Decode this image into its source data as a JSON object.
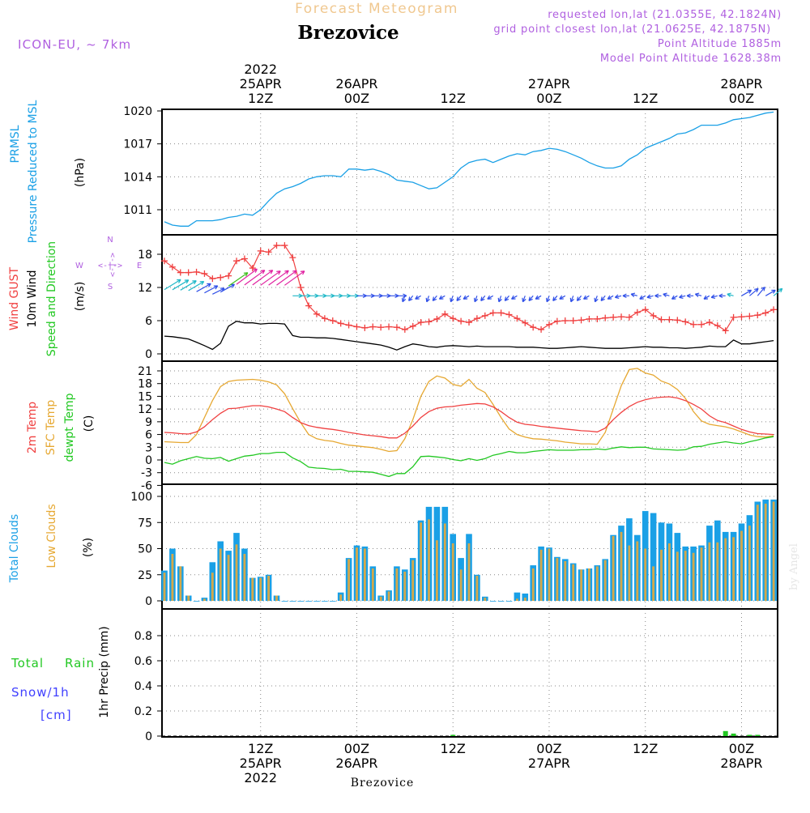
{
  "colors": {
    "pressure": "#1aa0e6",
    "gust": "#f04040",
    "wind": "#000000",
    "temp2m": "#f04040",
    "sfc": "#e6a832",
    "dewpt": "#22c822",
    "total_cloud": "#1aa0e6",
    "low_cloud": "#d4a84a",
    "rain": "#22c822",
    "snow": "#4040ff",
    "meta": "#b060e0",
    "title_faded": "#f0c890"
  },
  "header": {
    "faded_title": "Forecast Meteogram",
    "location": "Brezovice",
    "model": "ICON-EU, ~ 7km",
    "requested": "requested lon,lat (21.0355E, 42.1824N)",
    "gridpoint": "grid point closest lon,lat (21.0625E, 42.1875N)",
    "point_alt": "Point Altitude 1885m",
    "model_alt": "Model Point Altitude 1628.38m",
    "footer_location": "Brezovice",
    "watermark": "by Angel"
  },
  "time_axis": {
    "top": [
      {
        "h": 12,
        "lines": [
          "2022",
          "25APR",
          "12Z"
        ]
      },
      {
        "h": 24,
        "lines": [
          "26APR",
          "00Z"
        ]
      },
      {
        "h": 36,
        "lines": [
          "12Z"
        ]
      },
      {
        "h": 48,
        "lines": [
          "27APR",
          "00Z"
        ]
      },
      {
        "h": 60,
        "lines": [
          "12Z"
        ]
      },
      {
        "h": 72,
        "lines": [
          "28APR",
          "00Z"
        ]
      }
    ],
    "bottom": [
      {
        "h": 12,
        "lines": [
          "12Z",
          "25APR",
          "2022"
        ]
      },
      {
        "h": 24,
        "lines": [
          "00Z",
          "26APR"
        ]
      },
      {
        "h": 36,
        "lines": [
          "12Z"
        ]
      },
      {
        "h": 48,
        "lines": [
          "00Z",
          "27APR"
        ]
      },
      {
        "h": 60,
        "lines": [
          "12Z"
        ]
      },
      {
        "h": 72,
        "lines": [
          "00Z",
          "28APR"
        ]
      }
    ]
  },
  "panel_labels": {
    "pressure": [
      "PRMSL",
      "Pressure Reduced to MSL"
    ],
    "pressure_unit": "(hPa)",
    "wind": [
      "Wind GUST",
      "10m Wind",
      "Speed and Direction"
    ],
    "wind_unit": "(m/s)",
    "compass": {
      "n": "N",
      "s": "S",
      "w": "W",
      "e": "E",
      "arrows": "<-|->"
    },
    "temp": [
      "2m Temp",
      "SFC Temp",
      "dewpt Temp"
    ],
    "temp_unit": "(C)",
    "cloud": [
      "Total Clouds",
      "Low Clouds"
    ],
    "cloud_unit": "(%)",
    "precip": [
      "Total",
      "Rain",
      "Snow/1h",
      "[cm]"
    ],
    "precip_unit": "1hr Precip (mm)"
  },
  "chart_data": [
    {
      "type": "line",
      "title": "PRMSL Pressure Reduced to MSL",
      "ylabel": "hPa",
      "ylim": [
        1008.5,
        1020
      ],
      "yticks": [
        "1011",
        "1014",
        "1017",
        "1020"
      ],
      "x_hours": [
        0,
        1,
        2,
        3,
        4,
        5,
        6,
        7,
        8,
        9,
        10,
        11,
        12,
        13,
        14,
        15,
        16,
        17,
        18,
        19,
        20,
        21,
        22,
        23,
        24,
        25,
        26,
        27,
        28,
        29,
        30,
        31,
        32,
        33,
        34,
        35,
        36,
        37,
        38,
        39,
        40,
        41,
        42,
        43,
        44,
        45,
        46,
        47,
        48,
        49,
        50,
        51,
        52,
        53,
        54,
        55,
        56,
        57,
        58,
        59,
        60,
        61,
        62,
        63,
        64,
        65,
        66,
        67,
        68,
        69,
        70,
        71,
        72,
        73,
        74,
        75,
        76
      ],
      "series": [
        {
          "name": "PRMSL",
          "values": [
            1009.9,
            1009.6,
            1009.5,
            1009.5,
            1010.0,
            1010.0,
            1010.0,
            1010.1,
            1010.3,
            1010.4,
            1010.6,
            1010.5,
            1011.0,
            1011.8,
            1012.5,
            1012.9,
            1013.1,
            1013.4,
            1013.8,
            1014.0,
            1014.1,
            1014.1,
            1014.0,
            1014.7,
            1014.7,
            1014.6,
            1014.7,
            1014.5,
            1014.2,
            1013.7,
            1013.6,
            1013.5,
            1013.2,
            1012.9,
            1013.0,
            1013.5,
            1014.0,
            1014.8,
            1015.3,
            1015.5,
            1015.6,
            1015.3,
            1015.6,
            1015.9,
            1016.1,
            1016.0,
            1016.3,
            1016.4,
            1016.6,
            1016.5,
            1016.3,
            1016.0,
            1015.7,
            1015.3,
            1015.0,
            1014.8,
            1014.8,
            1015.0,
            1015.6,
            1016.0,
            1016.6,
            1016.9,
            1017.2,
            1017.5,
            1017.9,
            1018.0,
            1018.3,
            1018.7,
            1018.7,
            1018.7,
            1018.9,
            1019.2,
            1019.3,
            1019.4,
            1019.6,
            1019.8,
            1019.9
          ]
        }
      ]
    },
    {
      "type": "line",
      "title": "Wind GUST / 10m Wind Speed and Direction",
      "ylabel": "m/s",
      "ylim": [
        -0.5,
        20.5
      ],
      "yticks": [
        "0",
        "6",
        "12",
        "18"
      ],
      "x_hours": [
        0,
        1,
        2,
        3,
        4,
        5,
        6,
        7,
        8,
        9,
        10,
        11,
        12,
        13,
        14,
        15,
        16,
        17,
        18,
        19,
        20,
        21,
        22,
        23,
        24,
        25,
        26,
        27,
        28,
        29,
        30,
        31,
        32,
        33,
        34,
        35,
        36,
        37,
        38,
        39,
        40,
        41,
        42,
        43,
        44,
        45,
        46,
        47,
        48,
        49,
        50,
        51,
        52,
        53,
        54,
        55,
        56,
        57,
        58,
        59,
        60,
        61,
        62,
        63,
        64,
        65,
        66,
        67,
        68,
        69,
        70,
        71,
        72,
        73,
        74,
        75,
        76
      ],
      "series": [
        {
          "name": "Wind GUST",
          "values": [
            16.8,
            15.7,
            14.7,
            14.7,
            14.8,
            14.5,
            13.6,
            13.8,
            14.1,
            16.8,
            17.2,
            15.5,
            18.6,
            18.4,
            19.6,
            19.6,
            17.4,
            12.0,
            8.7,
            7.2,
            6.4,
            6.0,
            5.5,
            5.2,
            4.9,
            4.7,
            4.9,
            4.8,
            4.9,
            4.8,
            4.4,
            5.0,
            5.7,
            5.8,
            6.3,
            7.2,
            6.4,
            5.9,
            5.7,
            6.4,
            6.9,
            7.4,
            7.4,
            7.1,
            6.4,
            5.6,
            4.8,
            4.4,
            5.3,
            5.9,
            6.0,
            6.0,
            6.1,
            6.3,
            6.3,
            6.5,
            6.6,
            6.7,
            6.6,
            7.5,
            8.0,
            6.9,
            6.2,
            6.2,
            6.1,
            5.8,
            5.3,
            5.3,
            5.7,
            5.1,
            4.2,
            6.6,
            6.7,
            6.8,
            7.0,
            7.4,
            8.0
          ]
        },
        {
          "name": "10m Wind",
          "values": [
            3.2,
            3.1,
            2.9,
            2.7,
            2.1,
            1.5,
            0.8,
            1.9,
            5.0,
            5.9,
            5.6,
            5.6,
            5.4,
            5.5,
            5.5,
            5.4,
            3.3,
            3.0,
            3.0,
            2.9,
            2.9,
            2.8,
            2.6,
            2.4,
            2.2,
            2.0,
            1.8,
            1.6,
            1.2,
            0.7,
            1.3,
            1.8,
            1.6,
            1.3,
            1.2,
            1.4,
            1.5,
            1.4,
            1.3,
            1.4,
            1.3,
            1.3,
            1.3,
            1.3,
            1.2,
            1.2,
            1.2,
            1.1,
            1.0,
            1.0,
            1.1,
            1.2,
            1.3,
            1.2,
            1.1,
            1.0,
            1.0,
            1.0,
            1.1,
            1.2,
            1.3,
            1.2,
            1.2,
            1.1,
            1.1,
            1.0,
            1.1,
            1.2,
            1.4,
            1.3,
            1.3,
            2.5,
            1.8,
            1.8,
            2.0,
            2.2,
            2.4
          ]
        }
      ]
    },
    {
      "type": "line",
      "title": "2m Temp / SFC Temp / dewpt Temp",
      "ylabel": "C",
      "ylim": [
        -6,
        22
      ],
      "yticks": [
        "-6",
        "-3",
        "0",
        "3",
        "6",
        "9",
        "12",
        "15",
        "18",
        "21"
      ],
      "x_hours": [
        0,
        1,
        2,
        3,
        4,
        5,
        6,
        7,
        8,
        9,
        10,
        11,
        12,
        13,
        14,
        15,
        16,
        17,
        18,
        19,
        20,
        21,
        22,
        23,
        24,
        25,
        26,
        27,
        28,
        29,
        30,
        31,
        32,
        33,
        34,
        35,
        36,
        37,
        38,
        39,
        40,
        41,
        42,
        43,
        44,
        45,
        46,
        47,
        48,
        49,
        50,
        51,
        52,
        53,
        54,
        55,
        56,
        57,
        58,
        59,
        60,
        61,
        62,
        63,
        64,
        65,
        66,
        67,
        68,
        69,
        70,
        71,
        72,
        73,
        74,
        75,
        76
      ],
      "series": [
        {
          "name": "2m Temp",
          "values": [
            6.5,
            6.4,
            6.2,
            6.1,
            6.6,
            7.8,
            9.5,
            11.0,
            12.1,
            12.2,
            12.5,
            12.8,
            12.8,
            12.5,
            12.0,
            11.4,
            10.0,
            8.8,
            8.1,
            7.7,
            7.4,
            7.2,
            6.9,
            6.5,
            6.2,
            5.9,
            5.7,
            5.5,
            5.2,
            5.2,
            6.3,
            8.0,
            10.0,
            11.4,
            12.2,
            12.5,
            12.6,
            12.9,
            13.1,
            13.3,
            13.2,
            12.5,
            11.4,
            10.0,
            8.9,
            8.4,
            8.2,
            7.9,
            7.7,
            7.5,
            7.3,
            7.1,
            6.9,
            6.8,
            6.6,
            7.5,
            9.5,
            11.2,
            12.6,
            13.6,
            14.2,
            14.6,
            14.8,
            14.9,
            14.6,
            14.0,
            13.1,
            12.0,
            10.4,
            9.3,
            8.8,
            8.0,
            7.2,
            6.6,
            6.2,
            6.1,
            6.0
          ]
        },
        {
          "name": "SFC Temp",
          "values": [
            4.3,
            4.2,
            4.1,
            4.1,
            6.0,
            10.0,
            14.0,
            17.3,
            18.5,
            18.8,
            18.9,
            19.0,
            18.8,
            18.4,
            17.7,
            15.6,
            12.1,
            8.8,
            6.0,
            5.0,
            4.6,
            4.4,
            3.9,
            3.5,
            3.3,
            3.1,
            2.9,
            2.5,
            2.0,
            2.2,
            5.0,
            9.5,
            15.0,
            18.5,
            19.8,
            19.3,
            17.8,
            17.4,
            19.0,
            16.9,
            15.9,
            13.1,
            10.0,
            7.3,
            6.0,
            5.4,
            5.0,
            4.9,
            4.7,
            4.5,
            4.2,
            4.0,
            3.8,
            3.8,
            3.7,
            6.5,
            12.0,
            17.5,
            21.3,
            21.6,
            20.5,
            20.0,
            18.6,
            17.9,
            16.6,
            14.5,
            11.4,
            9.2,
            8.4,
            8.1,
            7.8,
            7.3,
            6.6,
            5.9,
            5.5,
            5.4,
            5.7
          ]
        },
        {
          "name": "dewpt Temp",
          "values": [
            -0.6,
            -1.0,
            -0.2,
            0.3,
            0.8,
            0.4,
            0.3,
            0.6,
            -0.3,
            0.3,
            0.9,
            1.1,
            1.5,
            1.5,
            1.8,
            1.8,
            0.5,
            -0.4,
            -1.7,
            -1.9,
            -2.0,
            -2.3,
            -2.2,
            -2.7,
            -2.7,
            -2.8,
            -2.9,
            -3.4,
            -3.9,
            -3.2,
            -3.2,
            -1.6,
            0.8,
            0.9,
            0.7,
            0.5,
            0.1,
            -0.2,
            0.3,
            -0.1,
            0.3,
            1.1,
            1.5,
            2.0,
            1.7,
            1.7,
            2.0,
            2.2,
            2.4,
            2.3,
            2.3,
            2.3,
            2.4,
            2.4,
            2.6,
            2.4,
            2.8,
            3.1,
            2.9,
            3.0,
            3.0,
            2.6,
            2.5,
            2.4,
            2.3,
            2.4,
            3.1,
            3.2,
            3.7,
            4.0,
            4.3,
            4.0,
            3.8,
            4.3,
            4.7,
            5.2,
            5.5
          ]
        }
      ]
    },
    {
      "type": "bar",
      "title": "Total Clouds / Low Clouds",
      "ylabel": "%",
      "ylim": [
        0,
        100
      ],
      "yticks": [
        "0",
        "25",
        "50",
        "75",
        "100"
      ],
      "x_hours": [
        0,
        1,
        2,
        3,
        4,
        5,
        6,
        7,
        8,
        9,
        10,
        11,
        12,
        13,
        14,
        15,
        16,
        17,
        18,
        19,
        20,
        21,
        22,
        23,
        24,
        25,
        26,
        27,
        28,
        29,
        30,
        31,
        32,
        33,
        34,
        35,
        36,
        37,
        38,
        39,
        40,
        41,
        42,
        43,
        44,
        45,
        46,
        47,
        48,
        49,
        50,
        51,
        52,
        53,
        54,
        55,
        56,
        57,
        58,
        59,
        60,
        61,
        62,
        63,
        64,
        65,
        66,
        67,
        68,
        69,
        70,
        71,
        72,
        73,
        74,
        75,
        76
      ],
      "series": [
        {
          "name": "Total Clouds",
          "values": [
            29,
            50,
            33,
            5,
            0,
            3,
            37,
            57,
            48,
            65,
            50,
            22,
            23,
            25,
            5,
            0,
            0,
            0,
            0,
            0,
            0,
            0,
            8,
            41,
            53,
            52,
            33,
            5,
            10,
            33,
            30,
            41,
            77,
            90,
            90,
            90,
            64,
            41,
            64,
            25,
            4,
            0,
            0,
            0,
            8,
            7,
            34,
            52,
            51,
            42,
            40,
            36,
            30,
            31,
            34,
            40,
            63,
            72,
            79,
            63,
            86,
            84,
            75,
            74,
            65,
            52,
            52,
            53,
            72,
            77,
            66,
            66,
            74,
            82,
            95,
            97,
            97
          ]
        },
        {
          "name": "Low Clouds",
          "values": [
            27,
            45,
            33,
            5,
            0,
            2,
            27,
            50,
            44,
            54,
            45,
            22,
            22,
            24,
            5,
            0,
            0,
            0,
            0,
            0,
            0,
            0,
            6,
            40,
            51,
            50,
            31,
            4,
            9,
            31,
            28,
            39,
            75,
            78,
            58,
            74,
            55,
            30,
            55,
            24,
            3,
            0,
            0,
            0,
            2,
            3,
            31,
            49,
            50,
            41,
            38,
            35,
            30,
            31,
            33,
            39,
            62,
            66,
            53,
            57,
            50,
            33,
            49,
            55,
            47,
            48,
            46,
            51,
            56,
            56,
            60,
            61,
            67,
            72,
            92,
            93,
            95
          ]
        }
      ]
    },
    {
      "type": "bar",
      "title": "1hr Precip",
      "ylabel": "mm",
      "ylim": [
        0,
        1
      ],
      "yticks": [
        "0",
        "0.2",
        "0.4",
        "0.6",
        "0.8"
      ],
      "x_hours": [
        36,
        70,
        71,
        73,
        74
      ],
      "series": [
        {
          "name": "Total Rain",
          "values": [
            0.01,
            0.04,
            0.02,
            0.01,
            0.01
          ]
        }
      ]
    }
  ]
}
